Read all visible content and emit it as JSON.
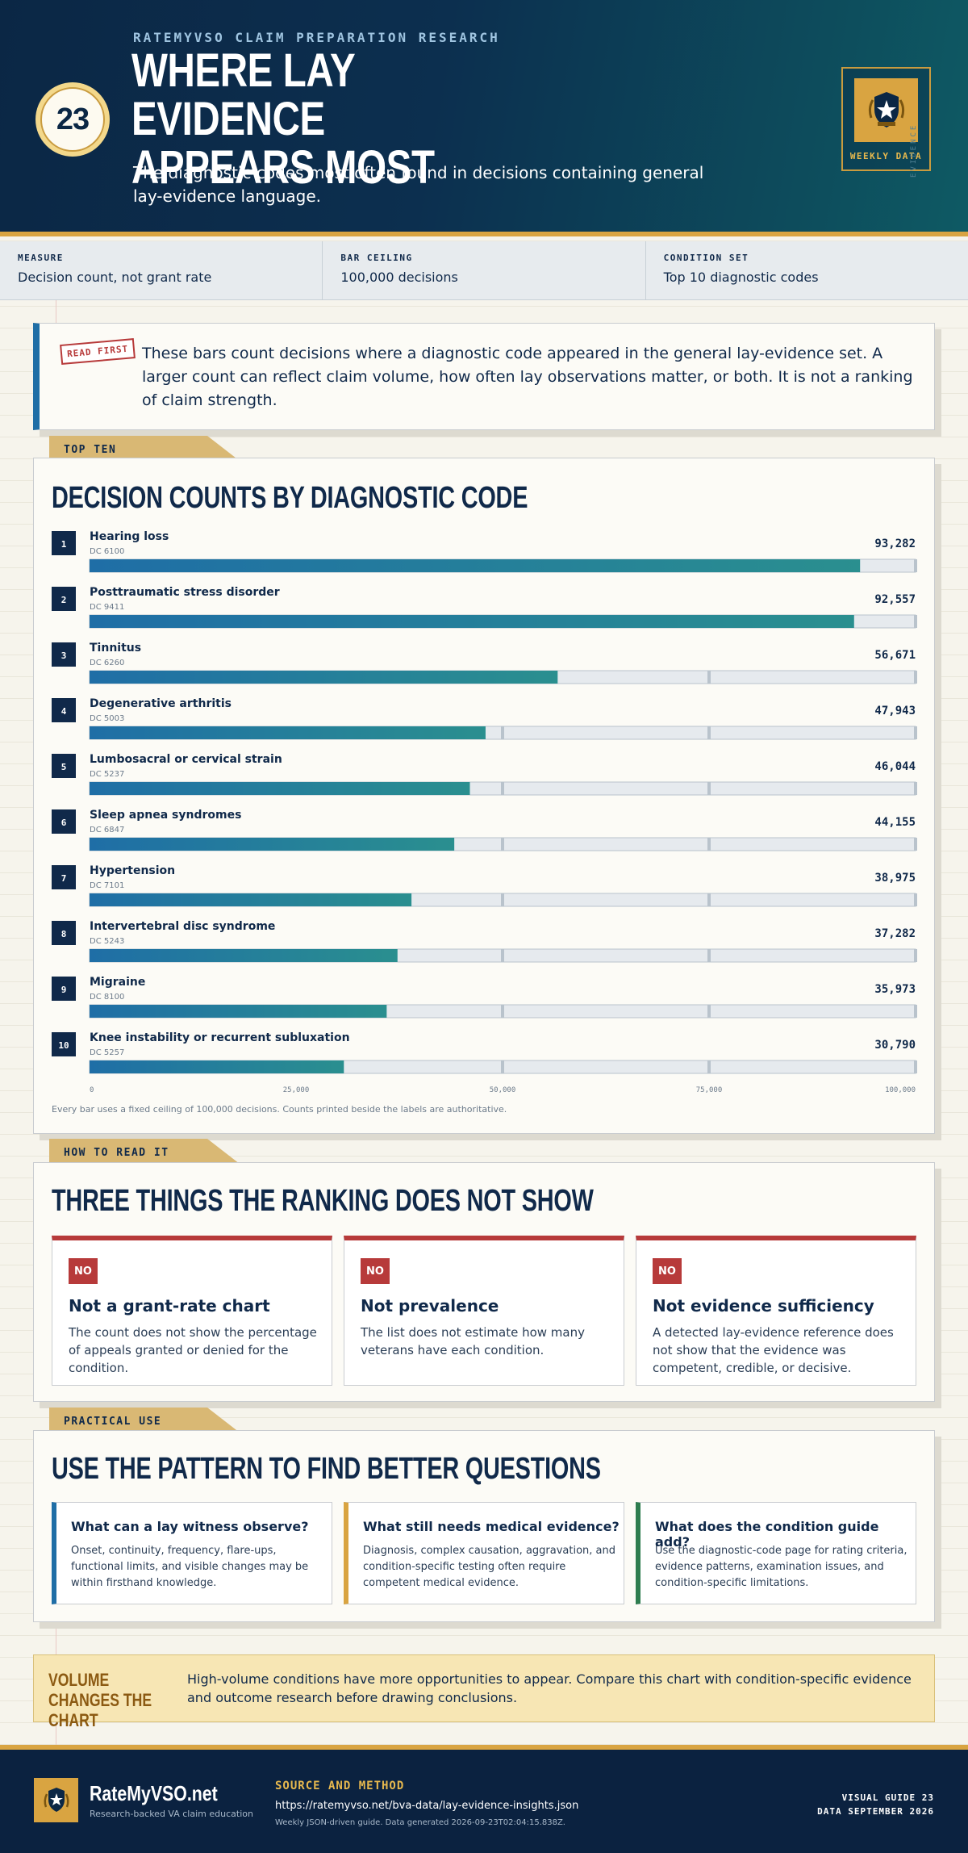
{
  "header": {
    "badge_number": "23",
    "kicker": "RATEMYVSO CLAIM PREPARATION RESEARCH",
    "title": "WHERE LAY EVIDENCE APPEARS MOST",
    "subtitle": "The diagnostic codes most often found in decisions containing general lay-evidence language.",
    "stamp_label": "WEEKLY DATA",
    "vertical_label": "EVIDENCE"
  },
  "meta": [
    {
      "label": "MEASURE",
      "value": "Decision count, not grant rate"
    },
    {
      "label": "BAR CEILING",
      "value": "100,000 decisions"
    },
    {
      "label": "CONDITION SET",
      "value": "Top 10 diagnostic codes"
    }
  ],
  "read_first": {
    "tag": "READ FIRST",
    "text": "These bars count decisions where a diagnostic code appeared in the general lay-evidence set. A larger count can reflect claim volume, how often lay observations matter, or both. It is not a ranking of claim strength."
  },
  "chart_section": {
    "tab": "TOP TEN",
    "title": "DECISION COUNTS BY DIAGNOSTIC CODE",
    "footnote": "Every bar uses a fixed ceiling of 100,000 decisions. Counts printed beside the labels are authoritative."
  },
  "chart_data": {
    "type": "bar",
    "orientation": "horizontal",
    "title": "DECISION COUNTS BY DIAGNOSTIC CODE",
    "xlim": [
      0,
      100000
    ],
    "ticks": [
      0,
      25000,
      50000,
      75000,
      100000
    ],
    "tick_labels": [
      "0",
      "25,000",
      "50,000",
      "75,000",
      "100,000"
    ],
    "grid": true,
    "bar_color_start": "#1f6ea6",
    "bar_color_end": "#2a8f8f",
    "rows": [
      {
        "rank": "1",
        "label": "Hearing loss",
        "code": "DC 6100",
        "value": 93282,
        "value_label": "93,282"
      },
      {
        "rank": "2",
        "label": "Posttraumatic stress disorder",
        "code": "DC 9411",
        "value": 92557,
        "value_label": "92,557"
      },
      {
        "rank": "3",
        "label": "Tinnitus",
        "code": "DC 6260",
        "value": 56671,
        "value_label": "56,671"
      },
      {
        "rank": "4",
        "label": "Degenerative arthritis",
        "code": "DC 5003",
        "value": 47943,
        "value_label": "47,943"
      },
      {
        "rank": "5",
        "label": "Lumbosacral or cervical strain",
        "code": "DC 5237",
        "value": 46044,
        "value_label": "46,044"
      },
      {
        "rank": "6",
        "label": "Sleep apnea syndromes",
        "code": "DC 6847",
        "value": 44155,
        "value_label": "44,155"
      },
      {
        "rank": "7",
        "label": "Hypertension",
        "code": "DC 7101",
        "value": 38975,
        "value_label": "38,975"
      },
      {
        "rank": "8",
        "label": "Intervertebral disc syndrome",
        "code": "DC 5243",
        "value": 37282,
        "value_label": "37,282"
      },
      {
        "rank": "9",
        "label": "Migraine",
        "code": "DC 8100",
        "value": 35973,
        "value_label": "35,973"
      },
      {
        "rank": "10",
        "label": "Knee instability or recurrent subluxation",
        "code": "DC 5257",
        "value": 30790,
        "value_label": "30,790"
      }
    ]
  },
  "how_to_read": {
    "tab": "HOW TO READ IT",
    "title": "THREE THINGS THE RANKING DOES NOT SHOW",
    "items": [
      {
        "badge": "NO",
        "title": "Not a grant-rate chart",
        "text": "The count does not show the percentage of appeals granted or denied for the condition."
      },
      {
        "badge": "NO",
        "title": "Not prevalence",
        "text": "The list does not estimate how many veterans have each condition."
      },
      {
        "badge": "NO",
        "title": "Not evidence sufficiency",
        "text": "A detected lay-evidence reference does not show that the evidence was competent, credible, or decisive."
      }
    ]
  },
  "practical": {
    "tab": "PRACTICAL USE",
    "title": "USE THE PATTERN TO FIND BETTER QUESTIONS",
    "items": [
      {
        "title": "What can a lay witness observe?",
        "text": "Onset, continuity, frequency, flare-ups, functional limits, and visible changes may be within firsthand knowledge.",
        "accent": "#1f6ea6"
      },
      {
        "title": "What still needs medical evidence?",
        "text": "Diagnosis, complex causation, aggravation, and condition-specific testing often require competent medical evidence.",
        "accent": "#d9a441"
      },
      {
        "title": "What does the condition guide add?",
        "text": "Use the diagnostic-code page for rating criteria, evidence patterns, examination issues, and condition-specific limitations.",
        "accent": "#2e7d4f"
      }
    ]
  },
  "callout": {
    "head": "VOLUME CHANGES THE CHART",
    "text": "High-volume conditions have more opportunities to appear. Compare this chart with condition-specific evidence and outcome research before drawing conclusions."
  },
  "footer": {
    "brand": "RateMyVSO.net",
    "tagline": "Research-backed VA claim education",
    "source_label": "SOURCE AND METHOD",
    "url": "https://ratemyvso.net/bva-data/lay-evidence-insights.json",
    "generated": "Weekly JSON-driven guide. Data generated 2026-09-23T02:04:15.838Z.",
    "guide_label": "VISUAL GUIDE 23",
    "data_label": "DATA SEPTEMBER 2026"
  }
}
